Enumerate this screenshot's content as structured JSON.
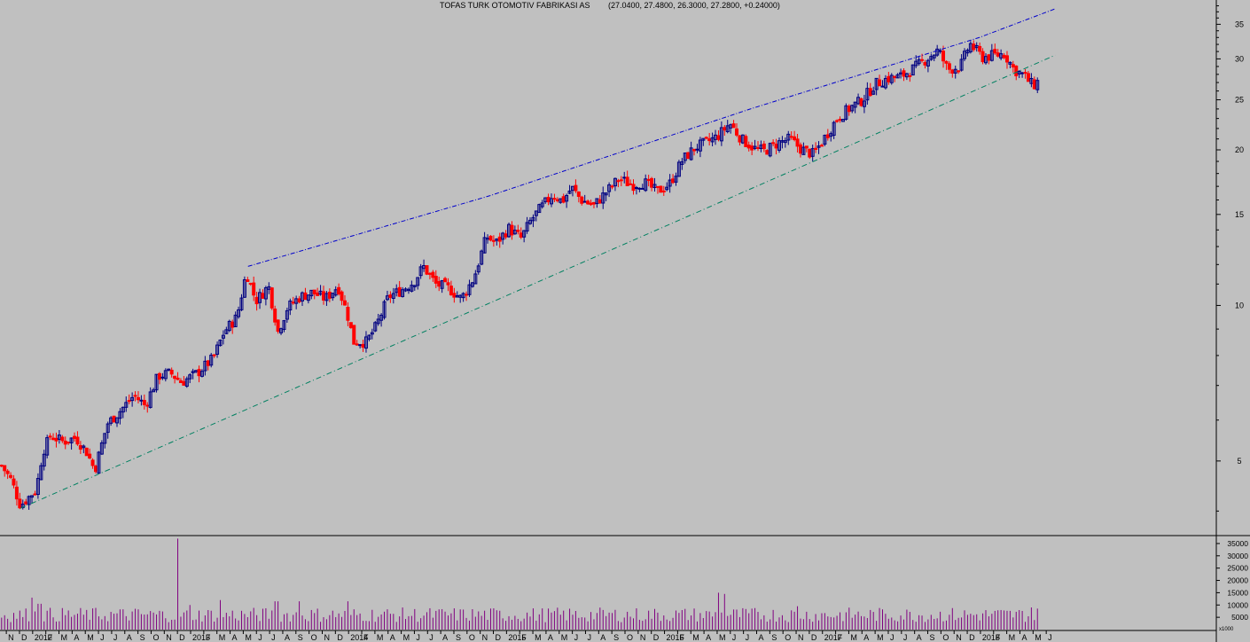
{
  "header": {
    "symbol": "TOFAS TURK OTOMOTIV FABRIKASI AS",
    "ohlc": "(27.0400, 27.4800, 26.3000, 27.2800, +0.24000)"
  },
  "colors": {
    "background": "#c0c0c0",
    "up": "#000080",
    "down": "#ff0000",
    "volume": "#800080",
    "upper_trendline": "#0000cc",
    "lower_trendline": "#008060"
  },
  "chart_data": [
    {
      "type": "candlestick",
      "scale": "log",
      "ylim": [
        3.6,
        39
      ],
      "xlim": [
        2011.8,
        2019.5
      ],
      "y_ticks": [
        5,
        10,
        15,
        20,
        25,
        30,
        35
      ],
      "x_ticks": [
        "N",
        "D",
        "2012",
        "F",
        "M",
        "A",
        "M",
        "J",
        "J",
        "A",
        "S",
        "O",
        "N",
        "D",
        "2013",
        "F",
        "M",
        "A",
        "M",
        "J",
        "J",
        "A",
        "S",
        "O",
        "N",
        "D",
        "2014",
        "F",
        "M",
        "A",
        "M",
        "J",
        "J",
        "A",
        "S",
        "O",
        "N",
        "D",
        "2015",
        "F",
        "M",
        "A",
        "M",
        "J",
        "J",
        "A",
        "S",
        "O",
        "N",
        "D",
        "2016",
        "F",
        "M",
        "A",
        "M",
        "J",
        "J",
        "A",
        "S",
        "O",
        "N",
        "D",
        "2017",
        "F",
        "M",
        "A",
        "M",
        "J",
        "J",
        "A",
        "S",
        "O",
        "N",
        "D",
        "2018",
        "F",
        "M",
        "A",
        "M",
        "J"
      ],
      "trendlines": [
        {
          "name": "upper",
          "points": [
            [
              2013.37,
              11.9
            ],
            [
              2014.9,
              16.3
            ],
            [
              2016.55,
              24.0
            ],
            [
              2018.0,
              33.0
            ],
            [
              2018.48,
              37.5
            ]
          ]
        },
        {
          "name": "lower",
          "points": [
            [
              2011.93,
              4.05
            ],
            [
              2016.95,
              19.0
            ],
            [
              2018.48,
              30.5
            ]
          ]
        }
      ],
      "close_path": [
        [
          2011.81,
          4.9
        ],
        [
          2011.87,
          4.6
        ],
        [
          2011.93,
          4.1
        ],
        [
          2011.98,
          4.25
        ],
        [
          2012.03,
          4.4
        ],
        [
          2012.07,
          5.2
        ],
        [
          2012.12,
          5.6
        ],
        [
          2012.2,
          5.45
        ],
        [
          2012.28,
          5.55
        ],
        [
          2012.35,
          5.2
        ],
        [
          2012.4,
          4.8
        ],
        [
          2012.48,
          5.9
        ],
        [
          2012.55,
          6.2
        ],
        [
          2012.65,
          6.7
        ],
        [
          2012.72,
          6.4
        ],
        [
          2012.8,
          7.3
        ],
        [
          2012.88,
          7.4
        ],
        [
          2012.95,
          7.1
        ],
        [
          2013.05,
          7.4
        ],
        [
          2013.15,
          7.9
        ],
        [
          2013.22,
          8.9
        ],
        [
          2013.3,
          9.5
        ],
        [
          2013.36,
          11.6
        ],
        [
          2013.42,
          10.2
        ],
        [
          2013.5,
          10.9
        ],
        [
          2013.56,
          8.9
        ],
        [
          2013.62,
          9.9
        ],
        [
          2013.7,
          10.4
        ],
        [
          2013.78,
          10.6
        ],
        [
          2013.86,
          10.3
        ],
        [
          2013.94,
          10.9
        ],
        [
          2014.0,
          9.6
        ],
        [
          2014.04,
          8.5
        ],
        [
          2014.12,
          8.5
        ],
        [
          2014.18,
          9.1
        ],
        [
          2014.26,
          10.4
        ],
        [
          2014.34,
          10.7
        ],
        [
          2014.42,
          11.1
        ],
        [
          2014.48,
          11.9
        ],
        [
          2014.56,
          11.0
        ],
        [
          2014.64,
          10.8
        ],
        [
          2014.72,
          10.3
        ],
        [
          2014.8,
          11.3
        ],
        [
          2014.88,
          13.6
        ],
        [
          2014.94,
          13.2
        ],
        [
          2015.02,
          14.1
        ],
        [
          2015.1,
          13.5
        ],
        [
          2015.16,
          14.6
        ],
        [
          2015.22,
          15.4
        ],
        [
          2015.3,
          16.4
        ],
        [
          2015.36,
          15.9
        ],
        [
          2015.42,
          16.9
        ],
        [
          2015.48,
          16.0
        ],
        [
          2015.56,
          15.6
        ],
        [
          2015.64,
          16.6
        ],
        [
          2015.72,
          17.6
        ],
        [
          2015.8,
          17.1
        ],
        [
          2015.88,
          17.3
        ],
        [
          2015.96,
          16.6
        ],
        [
          2016.04,
          17.2
        ],
        [
          2016.12,
          19.1
        ],
        [
          2016.2,
          20.2
        ],
        [
          2016.26,
          20.6
        ],
        [
          2016.34,
          21.2
        ],
        [
          2016.42,
          22.5
        ],
        [
          2016.5,
          20.9
        ],
        [
          2016.58,
          20.1
        ],
        [
          2016.64,
          19.9
        ],
        [
          2016.72,
          20.6
        ],
        [
          2016.8,
          21.0
        ],
        [
          2016.87,
          20.1
        ],
        [
          2016.95,
          19.6
        ],
        [
          2017.02,
          21.1
        ],
        [
          2017.1,
          23.0
        ],
        [
          2017.18,
          24.1
        ],
        [
          2017.26,
          25.0
        ],
        [
          2017.34,
          26.8
        ],
        [
          2017.42,
          27.5
        ],
        [
          2017.5,
          27.7
        ],
        [
          2017.58,
          28.7
        ],
        [
          2017.66,
          29.9
        ],
        [
          2017.74,
          31.2
        ],
        [
          2017.8,
          28.6
        ],
        [
          2017.88,
          29.0
        ],
        [
          2017.94,
          32.1
        ],
        [
          2018.02,
          30.2
        ],
        [
          2018.1,
          30.5
        ],
        [
          2018.16,
          30.7
        ],
        [
          2018.22,
          28.6
        ],
        [
          2018.28,
          27.9
        ],
        [
          2018.34,
          26.6
        ],
        [
          2018.38,
          27.28
        ]
      ]
    },
    {
      "type": "bar",
      "name": "volume",
      "y_ticks": [
        5000,
        10000,
        15000,
        20000,
        25000,
        30000,
        35000
      ],
      "scale_note": "x1000",
      "typical_level": 6000,
      "spikes": [
        [
          2012.0,
          13000
        ],
        [
          2012.05,
          10500
        ],
        [
          2012.92,
          37000
        ],
        [
          2013.0,
          10000
        ],
        [
          2013.2,
          12000
        ],
        [
          2013.55,
          11500
        ],
        [
          2013.7,
          11500
        ],
        [
          2014.0,
          11500
        ],
        [
          2016.35,
          15000
        ],
        [
          2016.38,
          14500
        ],
        [
          2016.85,
          9500
        ],
        [
          2018.33,
          9000
        ]
      ]
    }
  ]
}
